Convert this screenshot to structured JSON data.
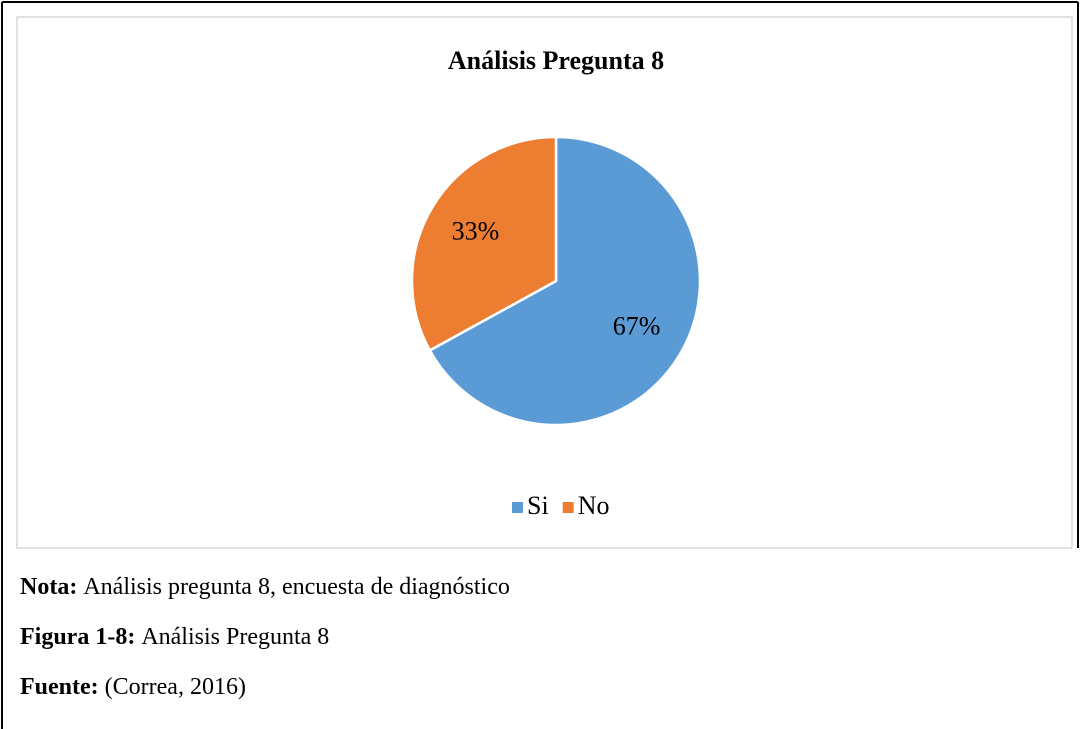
{
  "chart_data": {
    "type": "pie",
    "title": "Análisis Pregunta 8",
    "categories": [
      "Si",
      "No"
    ],
    "values": [
      67,
      33
    ],
    "value_labels": [
      "67%",
      "33%"
    ],
    "colors": [
      "#5b9bd5",
      "#ed7d31"
    ],
    "legend": "bottom"
  },
  "notes": [
    {
      "label": "Nota:",
      "text": "Análisis pregunta 8, encuesta de diagnóstico"
    },
    {
      "label": "Figura 1-8:",
      "text": "Análisis Pregunta 8"
    },
    {
      "label": "Fuente:",
      "text": "(Correa, 2016)"
    }
  ]
}
